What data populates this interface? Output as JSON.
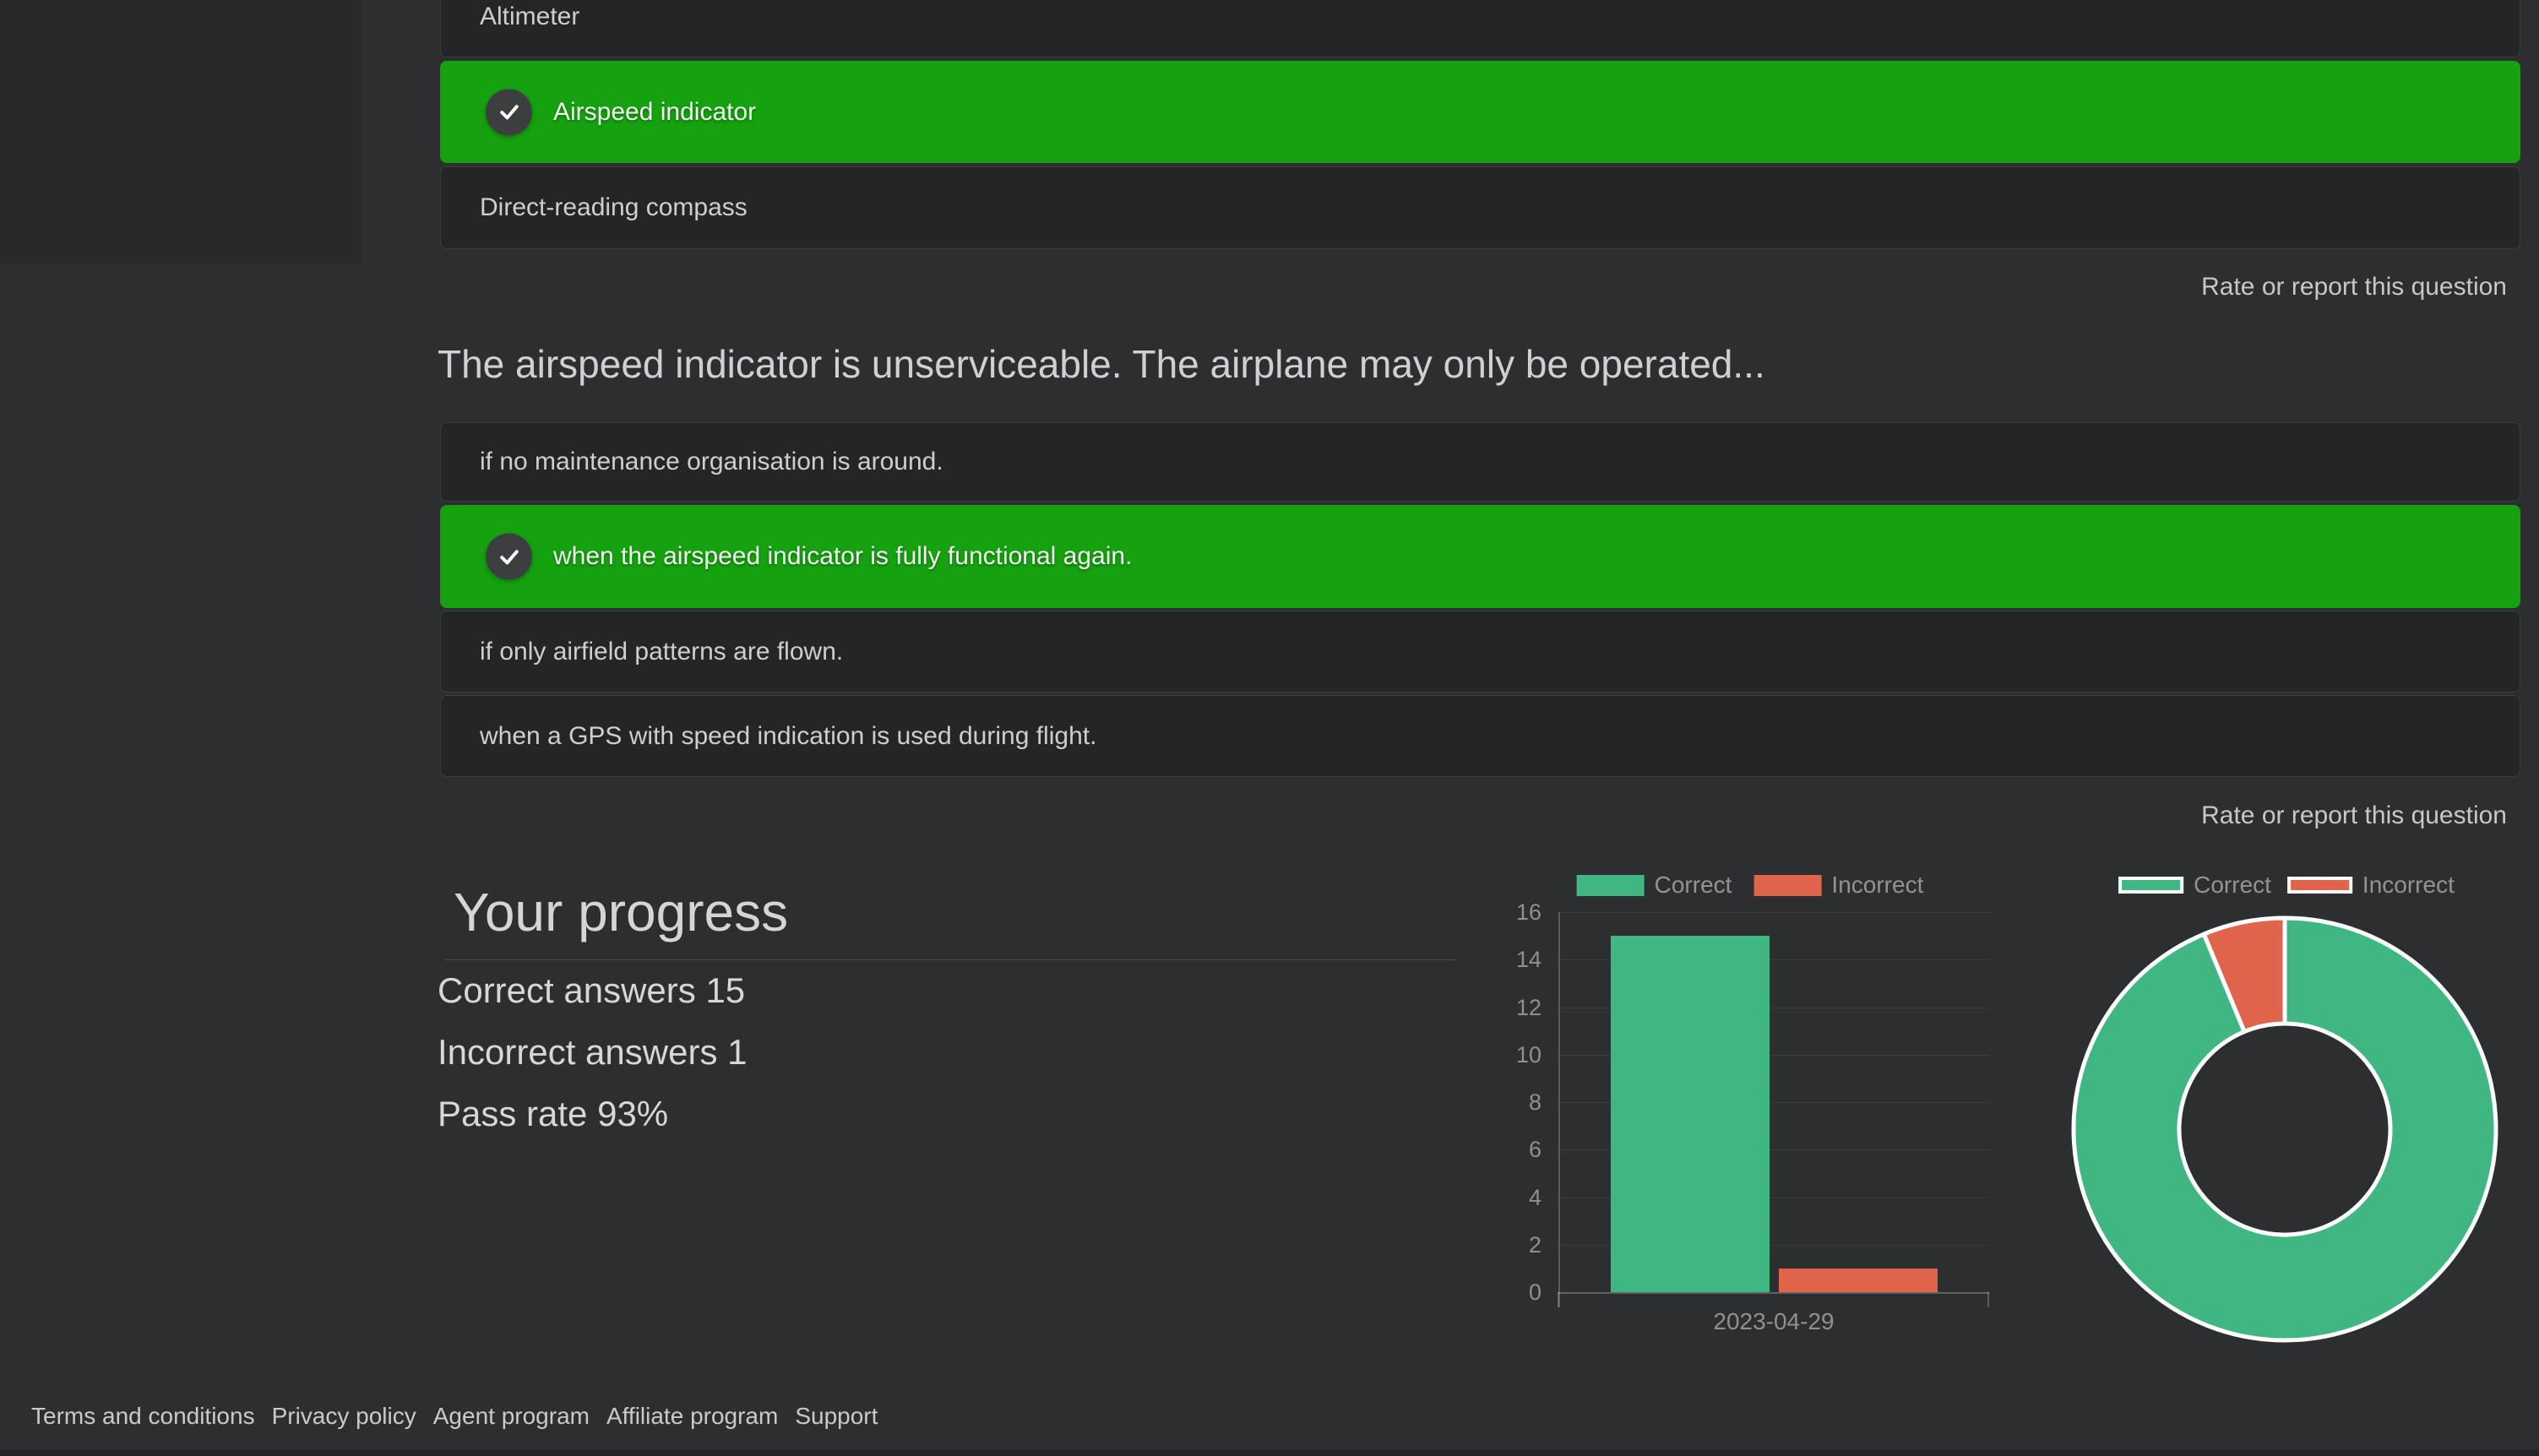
{
  "quiz": {
    "rate_link_label": "Rate or report this question",
    "previous_question": {
      "options": [
        {
          "label": "Altimeter",
          "selected": false
        },
        {
          "label": "Airspeed indicator",
          "selected": true
        },
        {
          "label": "Direct-reading compass",
          "selected": false
        }
      ]
    },
    "current_question": {
      "title": "The airspeed indicator is unserviceable. The airplane may only be operated...",
      "options": [
        {
          "label": "if no maintenance organisation is around.",
          "selected": false
        },
        {
          "label": "when the airspeed indicator is fully functional again.",
          "selected": true
        },
        {
          "label": "if only airfield patterns are flown.",
          "selected": false
        },
        {
          "label": "when a GPS with speed indication is used during flight.",
          "selected": false
        }
      ]
    }
  },
  "progress": {
    "heading": "Your progress",
    "stats": [
      {
        "label": "Correct answers",
        "value": "15"
      },
      {
        "label": "Incorrect answers",
        "value": "1"
      },
      {
        "label": "Pass rate",
        "value": "93%"
      }
    ]
  },
  "colors": {
    "selected_answer_green": "#16a210",
    "chart_green": "#40b783",
    "chart_red": "#e0644c",
    "page_background": "#2d2e30"
  },
  "chart_data": [
    {
      "type": "bar",
      "categories": [
        "2023-04-29"
      ],
      "series": [
        {
          "name": "Correct",
          "values": [
            15
          ],
          "color": "#40b783"
        },
        {
          "name": "Incorrect",
          "values": [
            1
          ],
          "color": "#e0644c"
        }
      ],
      "title": "",
      "xlabel": "2023-04-29",
      "ylabel": "",
      "ylim": [
        0,
        16
      ],
      "ytick_step": 2,
      "grid": true,
      "legend_position": "top"
    },
    {
      "type": "pie",
      "subtype": "doughnut",
      "labels": [
        "Correct",
        "Incorrect"
      ],
      "values": [
        15,
        1
      ],
      "colors": [
        "#40b783",
        "#e0644c"
      ],
      "border_color": "#ffffff",
      "legend_position": "top",
      "start_angle_deg": 0,
      "direction": "clockwise"
    }
  ],
  "footer": {
    "links": [
      "Terms and conditions",
      "Privacy policy",
      "Agent program",
      "Affiliate program",
      "Support"
    ]
  }
}
